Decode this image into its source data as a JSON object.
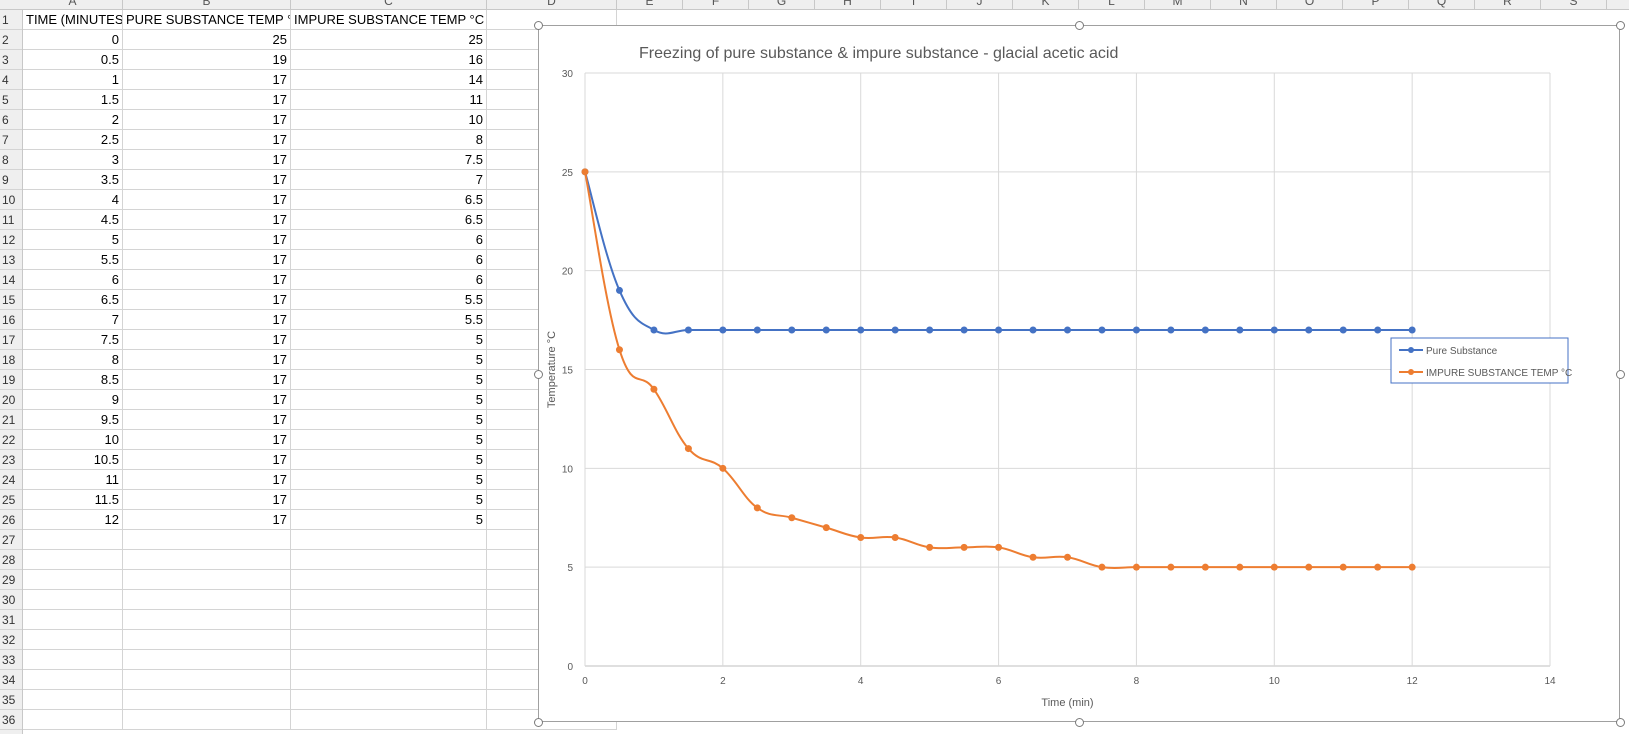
{
  "column_headers": [
    "A",
    "B",
    "C",
    "D",
    "E",
    "F",
    "G",
    "H",
    "I",
    "J",
    "K",
    "L",
    "M",
    "N",
    "O",
    "P",
    "Q",
    "R",
    "S"
  ],
  "row_numbers": [
    "1",
    "2",
    "3",
    "4",
    "5",
    "6",
    "7",
    "8",
    "9",
    "10",
    "11",
    "12",
    "13",
    "14",
    "15",
    "16",
    "17",
    "18",
    "19",
    "20",
    "21",
    "22",
    "23",
    "24",
    "25",
    "26",
    "27",
    "28",
    "29",
    "30",
    "31",
    "32",
    "33",
    "34",
    "35",
    "36"
  ],
  "table": {
    "headers": [
      "TIME (MINUTES)",
      "PURE SUBSTANCE TEMP °C",
      "IMPURE SUBSTANCE TEMP °C"
    ],
    "rows": [
      [
        "0",
        "25",
        "25"
      ],
      [
        "0.5",
        "19",
        "16"
      ],
      [
        "1",
        "17",
        "14"
      ],
      [
        "1.5",
        "17",
        "11"
      ],
      [
        "2",
        "17",
        "10"
      ],
      [
        "2.5",
        "17",
        "8"
      ],
      [
        "3",
        "17",
        "7.5"
      ],
      [
        "3.5",
        "17",
        "7"
      ],
      [
        "4",
        "17",
        "6.5"
      ],
      [
        "4.5",
        "17",
        "6.5"
      ],
      [
        "5",
        "17",
        "6"
      ],
      [
        "5.5",
        "17",
        "6"
      ],
      [
        "6",
        "17",
        "6"
      ],
      [
        "6.5",
        "17",
        "5.5"
      ],
      [
        "7",
        "17",
        "5.5"
      ],
      [
        "7.5",
        "17",
        "5"
      ],
      [
        "8",
        "17",
        "5"
      ],
      [
        "8.5",
        "17",
        "5"
      ],
      [
        "9",
        "17",
        "5"
      ],
      [
        "9.5",
        "17",
        "5"
      ],
      [
        "10",
        "17",
        "5"
      ],
      [
        "10.5",
        "17",
        "5"
      ],
      [
        "11",
        "17",
        "5"
      ],
      [
        "11.5",
        "17",
        "5"
      ],
      [
        "12",
        "17",
        "5"
      ]
    ]
  },
  "chart_data": {
    "type": "line",
    "title": "Freezing of pure substance & impure substance - glacial acetic acid",
    "xlabel": "Time (min)",
    "ylabel": "Temperature °C",
    "xlim": [
      0,
      14
    ],
    "ylim": [
      0,
      30
    ],
    "x_ticks": [
      "0",
      "2",
      "4",
      "6",
      "8",
      "10",
      "12",
      "14"
    ],
    "y_ticks": [
      "0",
      "5",
      "10",
      "15",
      "20",
      "25",
      "30"
    ],
    "grid": true,
    "legend_position": "right",
    "x": [
      0,
      0.5,
      1,
      1.5,
      2,
      2.5,
      3,
      3.5,
      4,
      4.5,
      5,
      5.5,
      6,
      6.5,
      7,
      7.5,
      8,
      8.5,
      9,
      9.5,
      10,
      10.5,
      11,
      11.5,
      12
    ],
    "series": [
      {
        "name": "Pure Substance",
        "color": "#4472c4",
        "values": [
          25,
          19,
          17,
          17,
          17,
          17,
          17,
          17,
          17,
          17,
          17,
          17,
          17,
          17,
          17,
          17,
          17,
          17,
          17,
          17,
          17,
          17,
          17,
          17,
          17
        ]
      },
      {
        "name": "IMPURE SUBSTANCE TEMP °C",
        "color": "#ed7d31",
        "values": [
          25,
          16,
          14,
          11,
          10,
          8,
          7.5,
          7,
          6.5,
          6.5,
          6,
          6,
          6,
          5.5,
          5.5,
          5,
          5,
          5,
          5,
          5,
          5,
          5,
          5,
          5,
          5
        ]
      }
    ]
  }
}
